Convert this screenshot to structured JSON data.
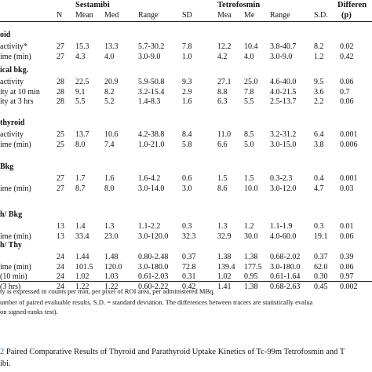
{
  "table": {
    "group_headers": [
      "Sestamibi",
      "Tetrofosmin",
      "Differen"
    ],
    "columns": [
      "N",
      "Mean",
      "Med",
      "Range",
      "SD",
      "Mea",
      "Me",
      "Range",
      "S.D.",
      "(p)"
    ],
    "sections": [
      {
        "title": "oid",
        "rows": [
          {
            "label": "activity*",
            "cells": [
              "27",
              "15.3",
              "13.3",
              "5.7-30.2",
              "7.8",
              "12.2",
              "10.4",
              "3.8-40.7",
              "8.2",
              "0.02"
            ]
          },
          {
            "label": "ime (min)",
            "cells": [
              "27",
              "4.3",
              "4.0",
              "3.0-9.0",
              "1.0",
              "4.2",
              "4.0",
              "3.0-9.0",
              "1.2",
              "0.42"
            ]
          }
        ]
      },
      {
        "title": "ical bkg.",
        "rows": [
          {
            "label": "activity",
            "cells": [
              "28",
              "22.5",
              "20.9",
              "5.9-50.8",
              "9.3",
              "27.1",
              "25.0",
              "4.6-40.0",
              "9.5",
              "0.06"
            ]
          },
          {
            "label": "ity at 10 min",
            "cells": [
              "28",
              "9.1",
              "8.2",
              "3.2-15.4",
              "2.9",
              "8.8",
              "7.8",
              "4.0-21.5",
              "3.6",
              "0.7"
            ]
          },
          {
            "label": "ity at  3 hrs",
            "cells": [
              "28",
              "5.5",
              "5.2",
              "1.4-8.3",
              "1.6",
              "6.3",
              "5.5",
              "2.5-13.7",
              "2.2",
              "0.06"
            ]
          }
        ]
      },
      {
        "title": "thyroid",
        "rows": [
          {
            "label": "activity",
            "cells": [
              "25",
              "13.7",
              "10.6",
              "4.2-38.8",
              "8.4",
              "11.0",
              "8.5",
              "3.2-31.2",
              "6.4",
              "0.001"
            ]
          },
          {
            "label": "ime (min)",
            "cells": [
              "25",
              "8.0",
              "7.4",
              "1.0-21.0",
              "5.8",
              "6.6",
              "5.0",
              "3.0-15.0",
              "3.8",
              "0.006"
            ]
          }
        ]
      },
      {
        "title": "Bkg",
        "rows": [
          {
            "label": "",
            "cells": [
              "27",
              "1.7",
              "1.6",
              "1.6-4.2",
              "0.6",
              "1.5",
              "1.5",
              "0.3-2.3",
              "0.4",
              "0.001"
            ]
          },
          {
            "label": "ime (min)",
            "cells": [
              "27",
              "8.7",
              "8.0",
              "3.0-14.0",
              "3.0",
              "8.6",
              "10.0",
              "3.0-12.0",
              "4.7",
              "0.03"
            ]
          }
        ]
      },
      {
        "title": "h/ Bkg",
        "rows": [
          {
            "label": "",
            "cells": [
              "13",
              "1.4",
              "1.3",
              "1.1-2.2",
              "0.3",
              "1.3",
              "1.2",
              "1.1-1.9",
              "0.3",
              "0.01"
            ]
          },
          {
            "label": "ime (min)",
            "cells": [
              "13",
              "33.4",
              "23.0",
              "3.0-120.0",
              "32.3",
              "32.9",
              "30.0",
              "4.0-60.0",
              "19.1",
              "0.06"
            ]
          }
        ]
      },
      {
        "title": "h/ Thy",
        "rows": [
          {
            "label": "",
            "cells": [
              "24",
              "1.44",
              "1.48",
              "0.80-2.48",
              "0.37",
              "1.38",
              "1.38",
              "0.68-2.02",
              "0.37",
              "0.39"
            ]
          },
          {
            "label": "ime (min)",
            "cells": [
              "24",
              "101.5",
              "120.0",
              "3.0-180.0",
              "72.8",
              "139.4",
              "177.5",
              "3.0-180.0",
              "62.0",
              "0.06"
            ]
          },
          {
            "label": "(10 min)",
            "cells": [
              "24",
              "1.02",
              "1.03",
              "0.61-2.03",
              "0.31",
              "1.02",
              "0.95",
              "0.61-1.64",
              "0.30",
              "0.97"
            ]
          },
          {
            "label": "(3 hrs)",
            "cells": [
              "24",
              "1.22",
              "1.22",
              "0.60-2.22",
              "0.42",
              "1.41",
              "1.38",
              "0.68-2.63",
              "0.45",
              "0.002"
            ]
          }
        ]
      }
    ]
  },
  "footnotes": [
    "ty is expressed in counts per min, per pixel of ROI area, per administered MBq.",
    "umber of paired evaluable results. S.D. = standard deviation. The differences between tracers are statistically evalua",
    "on signed-ranks test)."
  ],
  "caption": {
    "number": "2",
    "line1": "Paired Comparative Results of Thyroid and Parathyroid Uptake Kinetics of Tc-99m Tetrofosmin and T",
    "line2": "ibi."
  },
  "colors": {
    "caption_number": "#2a6fb8",
    "rule": "#222222"
  }
}
